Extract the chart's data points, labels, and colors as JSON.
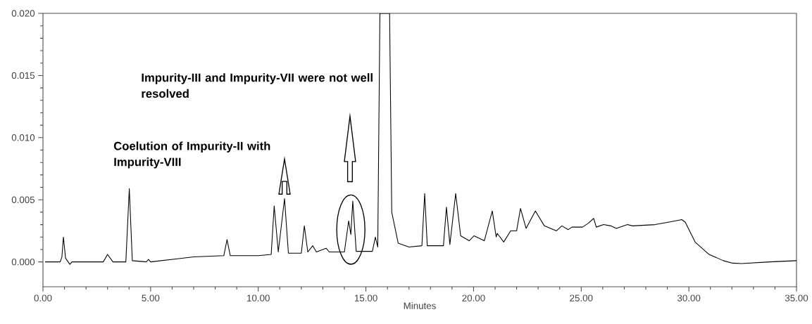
{
  "chart_data": {
    "type": "line",
    "xlabel": "Minutes",
    "xlim": [
      0,
      35
    ],
    "ylim": [
      -0.002,
      0.02
    ],
    "xticks": [
      {
        "value": 0,
        "label": "0.00"
      },
      {
        "value": 5,
        "label": "5.00"
      },
      {
        "value": 10,
        "label": "10.00"
      },
      {
        "value": 15,
        "label": "15.00"
      },
      {
        "value": 20,
        "label": "20.00"
      },
      {
        "value": 25,
        "label": "25.00"
      },
      {
        "value": 30,
        "label": "30.00"
      },
      {
        "value": 35,
        "label": "35.00"
      }
    ],
    "yticks": [
      {
        "value": 0,
        "label": "0.000"
      },
      {
        "value": 0.005,
        "label": "0.005"
      },
      {
        "value": 0.01,
        "label": "0.010"
      },
      {
        "value": 0.015,
        "label": "0.015"
      },
      {
        "value": 0.02,
        "label": "0.020"
      }
    ],
    "annotations": [
      "Impurity-III and Impurity-VII were not well resolved",
      "Coelution of Impurity-II with Impurity-VIII"
    ],
    "series": [
      {
        "color": "#000000",
        "x": [
          0.1,
          0.8,
          0.88,
          0.95,
          1.05,
          1.25,
          1.35,
          2.8,
          3.0,
          3.25,
          3.85,
          4.01,
          4.15,
          4.8,
          4.9,
          5.0,
          7.0,
          8.4,
          8.55,
          8.7,
          10.0,
          10.6,
          10.74,
          10.93,
          11.22,
          11.4,
          12.0,
          12.14,
          12.3,
          12.53,
          12.7,
          13.15,
          13.3,
          14.0,
          14.2,
          14.3,
          14.39,
          14.55,
          15.3,
          15.44,
          15.55,
          15.65,
          16.1,
          16.2,
          16.5,
          17.0,
          17.6,
          17.73,
          17.85,
          18.6,
          18.74,
          18.9,
          19.17,
          19.4,
          19.8,
          20.02,
          20.5,
          20.87,
          21.05,
          21.1,
          21.4,
          21.72,
          22.0,
          22.18,
          22.44,
          22.87,
          23.29,
          23.85,
          24.1,
          24.4,
          24.57,
          25.06,
          25.32,
          25.58,
          25.7,
          26.04,
          26.37,
          26.63,
          27.15,
          27.38,
          28.43,
          29.08,
          29.67,
          29.83,
          30.29,
          30.94,
          31.6,
          32.03,
          32.45,
          33.76,
          35
        ],
        "values": [
          0.0,
          0.0,
          0.0004,
          0.002,
          0.0003,
          -0.0002,
          0.0,
          0.0,
          0.0006,
          0.0,
          0.0,
          0.0059,
          0.0001,
          0.0,
          0.0002,
          0.0,
          0.0004,
          0.0005,
          0.0018,
          0.0005,
          0.0005,
          0.0006,
          0.0045,
          0.0008,
          0.0051,
          0.0007,
          0.0007,
          0.0029,
          0.0008,
          0.0013,
          0.0008,
          0.0011,
          0.0008,
          0.0008,
          0.0033,
          0.0022,
          0.0049,
          0.00085,
          0.00085,
          0.002,
          0.0012,
          0.02,
          0.02,
          0.004,
          0.0015,
          0.0012,
          0.0013,
          0.0055,
          0.0013,
          0.0013,
          0.0044,
          0.0014,
          0.0055,
          0.0021,
          0.0017,
          0.0021,
          0.0017,
          0.0041,
          0.002,
          0.0023,
          0.0016,
          0.0025,
          0.0025,
          0.0043,
          0.0027,
          0.0041,
          0.0029,
          0.0025,
          0.0029,
          0.0026,
          0.0028,
          0.0028,
          0.0031,
          0.0035,
          0.0028,
          0.003,
          0.0029,
          0.0027,
          0.003,
          0.0029,
          0.003,
          0.0032,
          0.0034,
          0.0032,
          0.0016,
          0.0006,
          0.0001,
          -0.0001,
          -0.00013,
          0.0,
          0.0001
        ]
      }
    ]
  }
}
